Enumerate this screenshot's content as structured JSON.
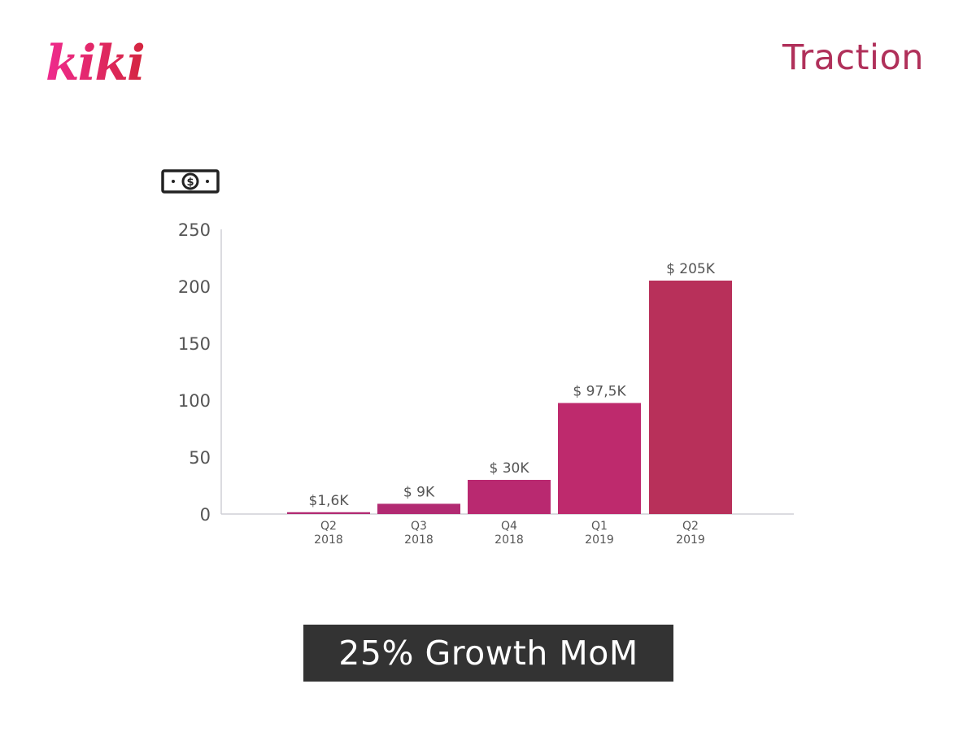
{
  "slide": {
    "logo_text": "kiki",
    "title": "Traction",
    "banner": "25% Growth MoM",
    "accent_color": "#b0305a",
    "banner_color": "#333333"
  },
  "money_icon": "dollar-bill-icon",
  "chart_data": {
    "type": "bar",
    "title": "",
    "xlabel": "",
    "ylabel": "",
    "categories": [
      [
        "Q2",
        "2018"
      ],
      [
        "Q3",
        "2018"
      ],
      [
        "Q4",
        "2018"
      ],
      [
        "Q1",
        "2019"
      ],
      [
        "Q2",
        "2019"
      ]
    ],
    "values": [
      1.6,
      9,
      30,
      97.5,
      205
    ],
    "data_labels": [
      "$1,6K",
      "$ 9K",
      "$ 30K",
      "$ 97,5K",
      "$ 205K"
    ],
    "ylim": [
      0,
      250
    ],
    "yticks": [
      0,
      50,
      100,
      150,
      200,
      250
    ],
    "grid": false,
    "bar_colors": [
      "#b22a72",
      "#b22a72",
      "#b92970",
      "#be2a6d",
      "#b8305a"
    ]
  }
}
